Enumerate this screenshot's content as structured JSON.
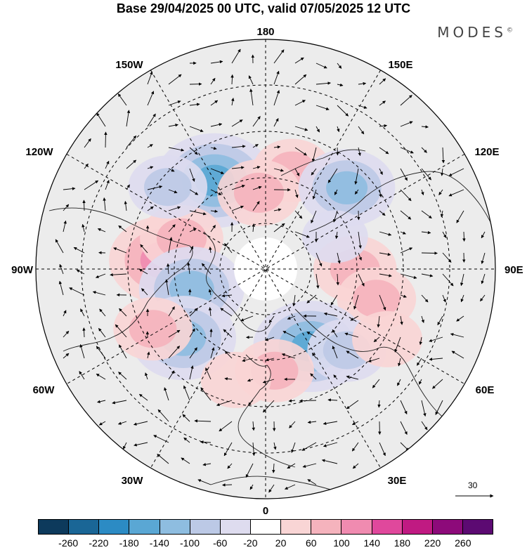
{
  "title": "Base 29/04/2025 00 UTC, valid 07/05/2025 12 UTC",
  "logo": {
    "text": "MODES",
    "mark": "©"
  },
  "longitude_labels": {
    "top": "180",
    "bottom": "0",
    "left": "90W",
    "right": "90E",
    "upper_left_1": "150W",
    "upper_left_2": "120W",
    "upper_right_1": "150E",
    "upper_right_2": "120E",
    "lower_left_1": "60W",
    "lower_left_2": "30W",
    "lower_right_1": "60E",
    "lower_right_2": "30E"
  },
  "reference_vector": {
    "label": "30"
  },
  "colorbar": {
    "colors": [
      "#0d3a5c",
      "#1a6696",
      "#2c8bc4",
      "#5aa7d4",
      "#8ebde0",
      "#bcc9e6",
      "#dedcef",
      "#ffffff",
      "#f9d5d5",
      "#f5b3bd",
      "#f08bb0",
      "#e0489c",
      "#c01a82",
      "#8d0a7a",
      "#5c0a72"
    ],
    "ticks": [
      "-260",
      "-220",
      "-180",
      "-140",
      "-100",
      "-60",
      "-20",
      "20",
      "60",
      "100",
      "140",
      "180",
      "220",
      "260"
    ]
  },
  "anomalies": [
    {
      "lon": -150,
      "lat": 50,
      "value": -150
    },
    {
      "lon": -95,
      "lat": 50,
      "value": 130
    },
    {
      "lon": -110,
      "lat": 55,
      "value": 70
    },
    {
      "lon": -75,
      "lat": 60,
      "value": -120
    },
    {
      "lon": -50,
      "lat": 48,
      "value": -120
    },
    {
      "lon": -62,
      "lat": 40,
      "value": 60
    },
    {
      "lon": -130,
      "lat": 40,
      "value": -60
    },
    {
      "lon": 165,
      "lat": 50,
      "value": 60
    },
    {
      "lon": -175,
      "lat": 60,
      "value": 70
    },
    {
      "lon": 135,
      "lat": 45,
      "value": -100
    },
    {
      "lon": 90,
      "lat": 55,
      "value": 70
    },
    {
      "lon": 75,
      "lat": 45,
      "value": 60
    },
    {
      "lon": 30,
      "lat": 55,
      "value": -140
    },
    {
      "lon": 45,
      "lat": 45,
      "value": -60
    },
    {
      "lon": 5,
      "lat": 50,
      "value": 60
    },
    {
      "lon": -15,
      "lat": 45,
      "value": 40
    },
    {
      "lon": 115,
      "lat": 60,
      "value": -30
    },
    {
      "lon": 60,
      "lat": 35,
      "value": 40
    }
  ]
}
